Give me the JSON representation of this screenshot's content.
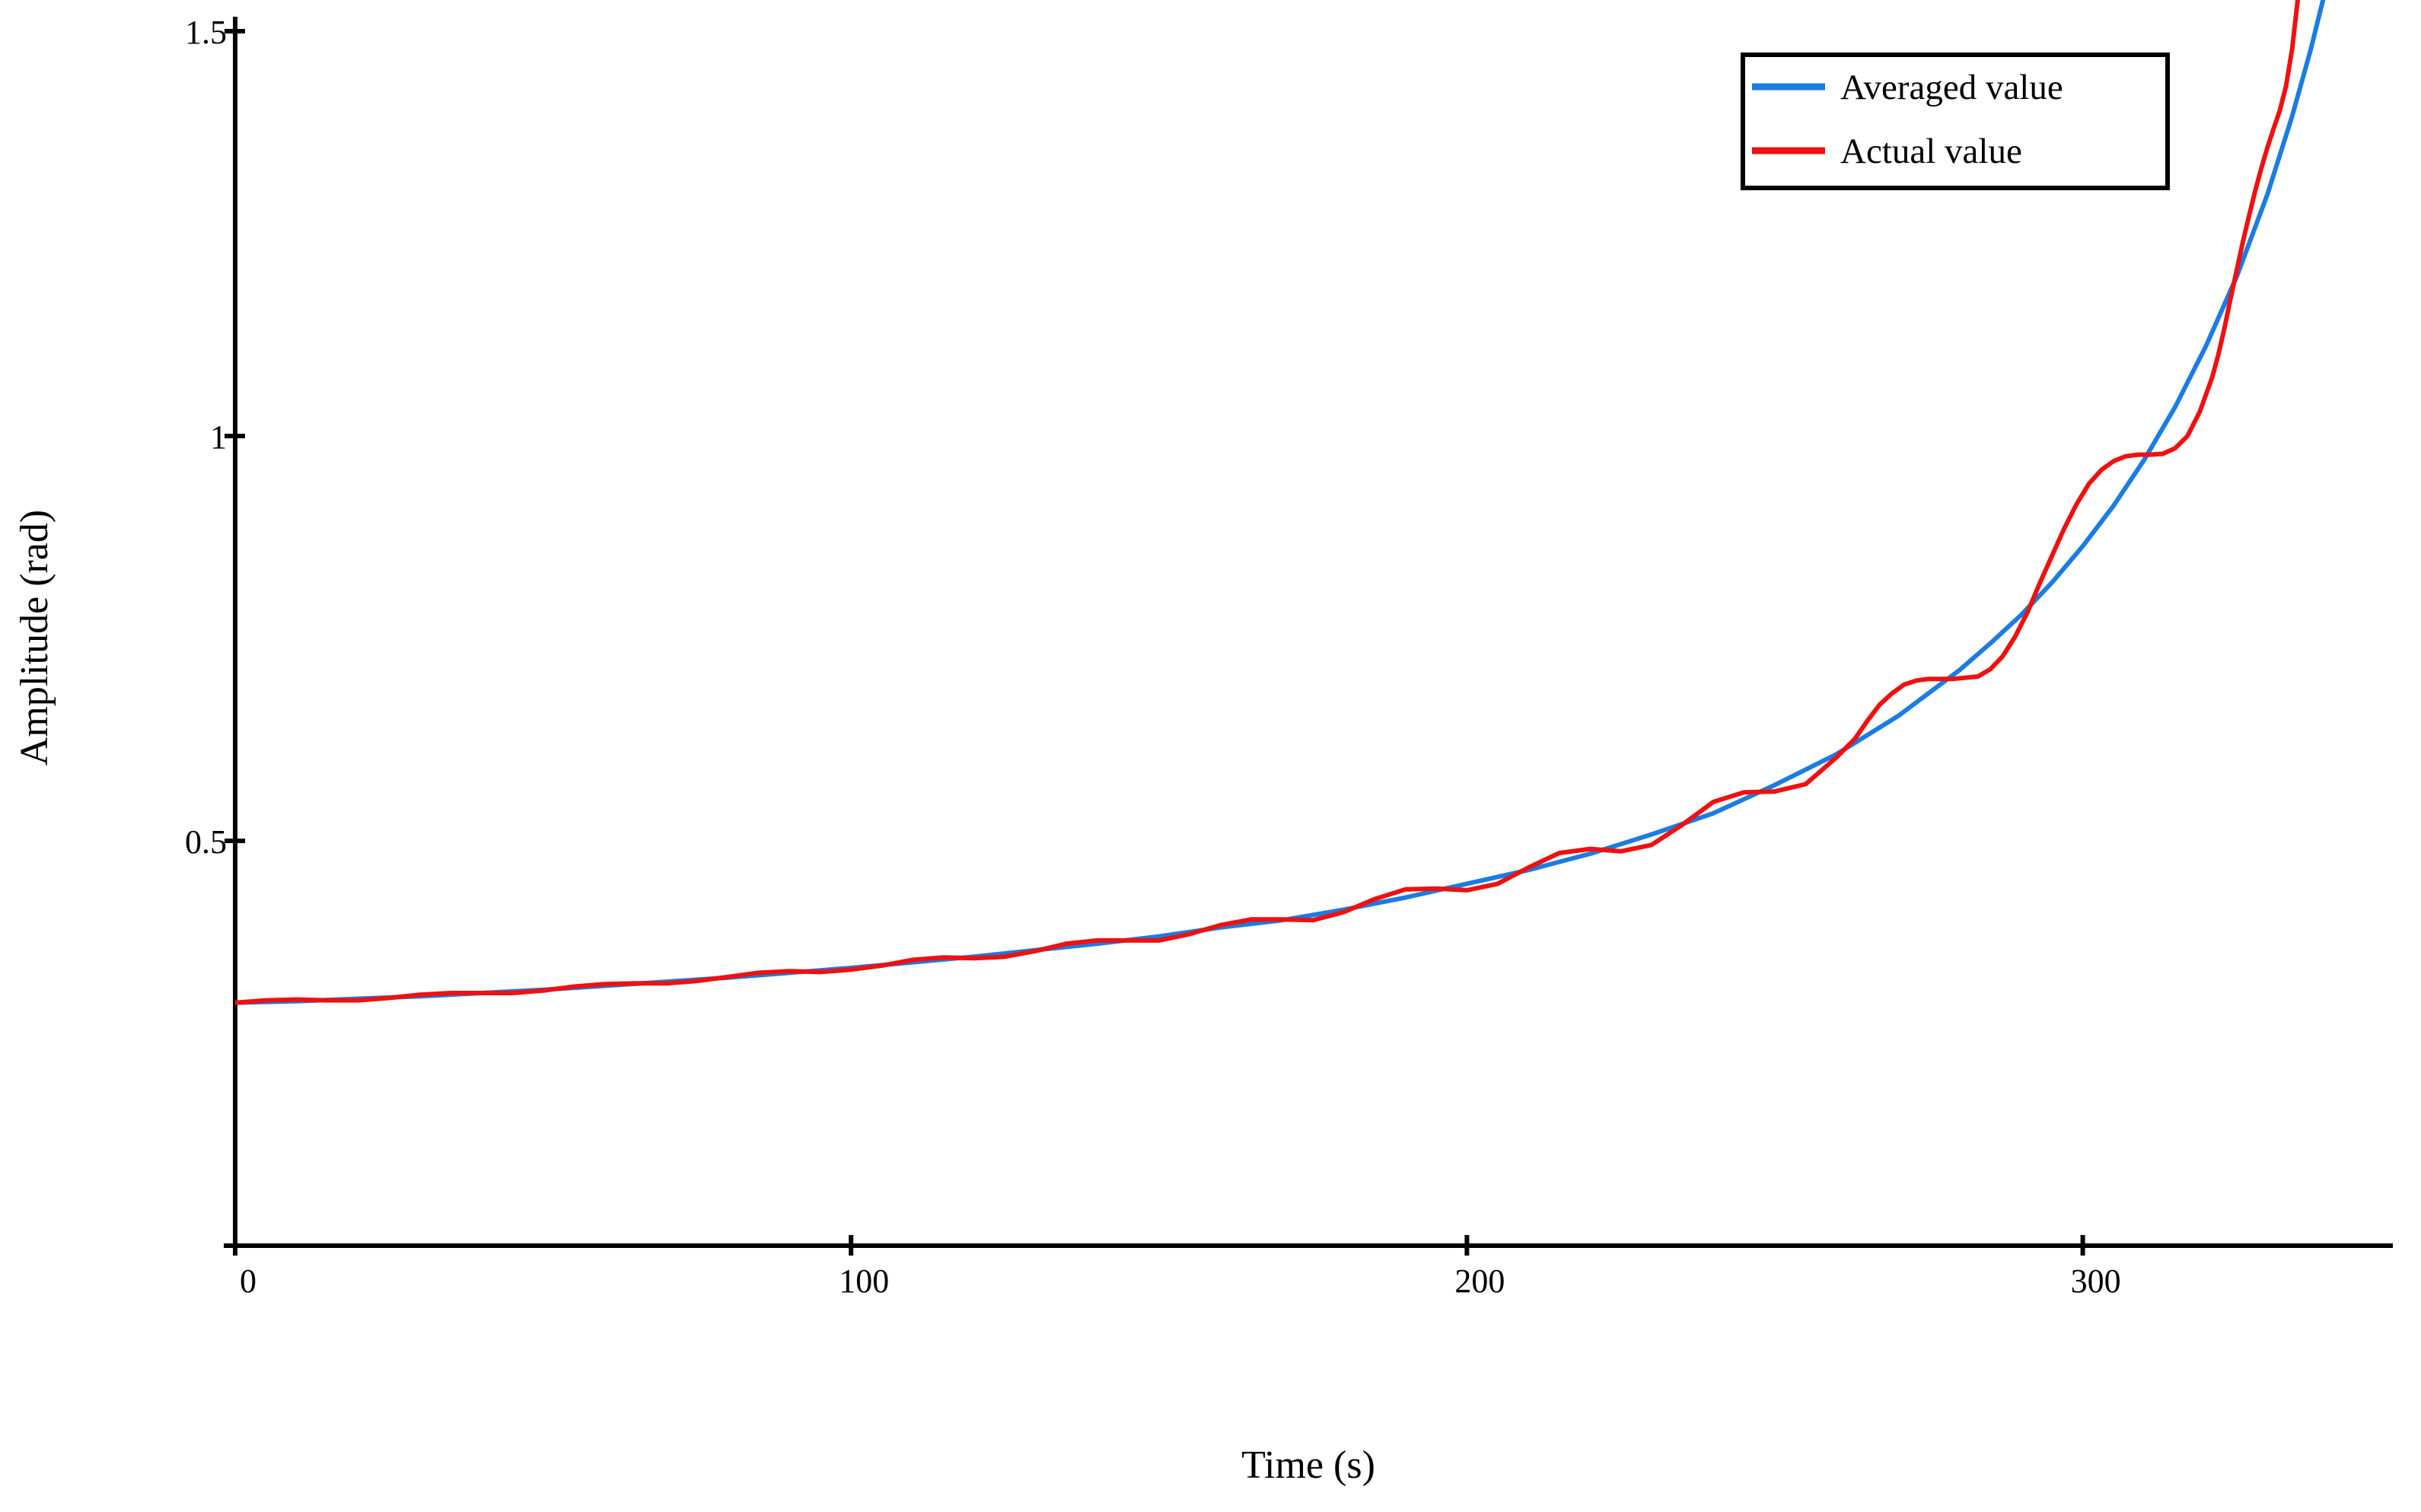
{
  "chart_data": {
    "type": "line",
    "title": "",
    "xlabel": "Time (s)",
    "ylabel": "Amplitude (rad)",
    "xlim": [
      0,
      350
    ],
    "ylim": [
      0,
      1.54
    ],
    "grid": false,
    "background_color": "#ffffff",
    "axis_color": "#000000",
    "x_ticks": [
      0,
      100,
      200,
      300
    ],
    "x_tick_labels": [
      "0",
      "100",
      "200",
      "300"
    ],
    "y_ticks": [
      0.5,
      1.0,
      1.5
    ],
    "y_tick_labels": [
      "0.5",
      "1",
      "1.5"
    ],
    "legend": {
      "position": "top-right",
      "border_color": "#000000"
    },
    "series": [
      {
        "name": "Averaged value",
        "color": "#1b7ce2",
        "points": [
          [
            0,
            0.3
          ],
          [
            10,
            0.302
          ],
          [
            20,
            0.305
          ],
          [
            30,
            0.308
          ],
          [
            40,
            0.312
          ],
          [
            50,
            0.316
          ],
          [
            60,
            0.321
          ],
          [
            70,
            0.326
          ],
          [
            80,
            0.331
          ],
          [
            90,
            0.337
          ],
          [
            100,
            0.343
          ],
          [
            110,
            0.35
          ],
          [
            120,
            0.357
          ],
          [
            130,
            0.365
          ],
          [
            140,
            0.373
          ],
          [
            150,
            0.382
          ],
          [
            160,
            0.393
          ],
          [
            170,
            0.402
          ],
          [
            180,
            0.415
          ],
          [
            190,
            0.43
          ],
          [
            200,
            0.447
          ],
          [
            210,
            0.464
          ],
          [
            220,
            0.484
          ],
          [
            230,
            0.508
          ],
          [
            240,
            0.534
          ],
          [
            250,
            0.569
          ],
          [
            260,
            0.607
          ],
          [
            270,
            0.654
          ],
          [
            280,
            0.711
          ],
          [
            285,
            0.744
          ],
          [
            290,
            0.779
          ],
          [
            295,
            0.819
          ],
          [
            300,
            0.864
          ],
          [
            305,
            0.914
          ],
          [
            310,
            0.971
          ],
          [
            315,
            1.036
          ],
          [
            320,
            1.111
          ],
          [
            325,
            1.197
          ],
          [
            330,
            1.299
          ],
          [
            334,
            1.395
          ],
          [
            337,
            1.477
          ],
          [
            340,
            1.569
          ]
        ]
      },
      {
        "name": "Actual value",
        "color": "#ee1111",
        "points": [
          [
            0,
            0.3
          ],
          [
            5,
            0.303
          ],
          [
            10,
            0.304
          ],
          [
            15,
            0.303
          ],
          [
            20,
            0.303
          ],
          [
            25,
            0.306
          ],
          [
            30,
            0.31
          ],
          [
            35,
            0.312
          ],
          [
            40,
            0.312
          ],
          [
            45,
            0.312
          ],
          [
            50,
            0.315
          ],
          [
            55,
            0.32
          ],
          [
            60,
            0.323
          ],
          [
            65,
            0.324
          ],
          [
            70,
            0.324
          ],
          [
            75,
            0.327
          ],
          [
            80,
            0.332
          ],
          [
            85,
            0.337
          ],
          [
            90,
            0.339
          ],
          [
            95,
            0.338
          ],
          [
            100,
            0.341
          ],
          [
            105,
            0.346
          ],
          [
            110,
            0.353
          ],
          [
            115,
            0.356
          ],
          [
            120,
            0.355
          ],
          [
            125,
            0.357
          ],
          [
            130,
            0.364
          ],
          [
            135,
            0.373
          ],
          [
            140,
            0.377
          ],
          [
            145,
            0.377
          ],
          [
            150,
            0.377
          ],
          [
            155,
            0.385
          ],
          [
            160,
            0.396
          ],
          [
            165,
            0.403
          ],
          [
            170,
            0.403
          ],
          [
            175,
            0.402
          ],
          [
            180,
            0.412
          ],
          [
            185,
            0.428
          ],
          [
            190,
            0.44
          ],
          [
            195,
            0.441
          ],
          [
            200,
            0.439
          ],
          [
            205,
            0.447
          ],
          [
            210,
            0.467
          ],
          [
            215,
            0.485
          ],
          [
            220,
            0.49
          ],
          [
            225,
            0.487
          ],
          [
            230,
            0.495
          ],
          [
            235,
            0.52
          ],
          [
            240,
            0.548
          ],
          [
            245,
            0.56
          ],
          [
            250,
            0.561
          ],
          [
            255,
            0.57
          ],
          [
            260,
            0.603
          ],
          [
            263,
            0.626
          ],
          [
            265,
            0.648
          ],
          [
            267,
            0.668
          ],
          [
            269,
            0.682
          ],
          [
            271,
            0.693
          ],
          [
            273,
            0.698
          ],
          [
            275,
            0.7
          ],
          [
            279,
            0.7
          ],
          [
            283,
            0.703
          ],
          [
            285,
            0.712
          ],
          [
            287,
            0.728
          ],
          [
            289,
            0.752
          ],
          [
            291,
            0.782
          ],
          [
            293,
            0.818
          ],
          [
            295,
            0.852
          ],
          [
            297,
            0.886
          ],
          [
            299,
            0.916
          ],
          [
            301,
            0.941
          ],
          [
            303,
            0.958
          ],
          [
            305,
            0.969
          ],
          [
            307,
            0.975
          ],
          [
            309,
            0.977
          ],
          [
            311,
            0.977
          ],
          [
            313,
            0.978
          ],
          [
            315,
            0.985
          ],
          [
            317,
            1.0
          ],
          [
            319,
            1.03
          ],
          [
            321,
            1.072
          ],
          [
            322,
            1.1
          ],
          [
            323,
            1.133
          ],
          [
            324,
            1.17
          ],
          [
            325,
            1.205
          ],
          [
            326,
            1.24
          ],
          [
            327,
            1.272
          ],
          [
            328,
            1.303
          ],
          [
            329,
            1.331
          ],
          [
            330,
            1.357
          ],
          [
            331,
            1.38
          ],
          [
            332,
            1.402
          ],
          [
            333,
            1.432
          ],
          [
            334,
            1.478
          ],
          [
            335,
            1.545
          ]
        ]
      }
    ]
  }
}
